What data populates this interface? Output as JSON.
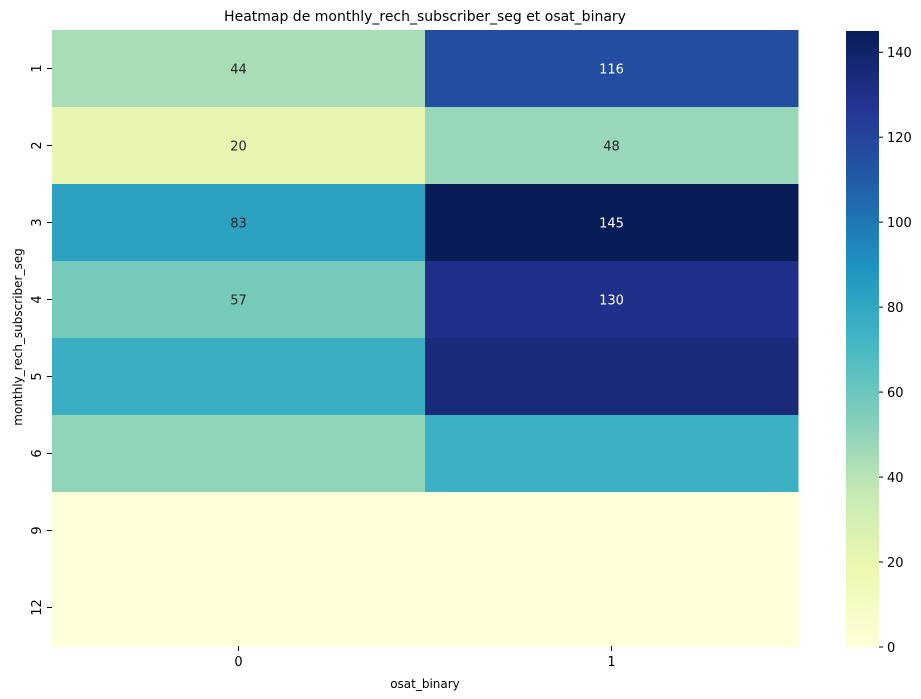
{
  "chart_data": {
    "type": "heatmap",
    "title": "Heatmap de monthly_rech_subscriber_seg et osat_binary",
    "xlabel": "osat_binary",
    "ylabel": "monthly_rech_subscriber_seg",
    "x_categories": [
      "0",
      "1"
    ],
    "y_categories": [
      "1",
      "2",
      "3",
      "4",
      "5",
      "6",
      "9",
      "12"
    ],
    "values": [
      [
        44,
        116
      ],
      [
        20,
        48
      ],
      [
        83,
        145
      ],
      [
        57,
        130
      ],
      [
        76,
        135
      ],
      [
        50,
        75
      ],
      [
        0,
        0
      ],
      [
        0,
        0
      ]
    ],
    "cell_labels": [
      [
        "44",
        "116"
      ],
      [
        "20",
        "48"
      ],
      [
        "83",
        "145"
      ],
      [
        "57",
        "130"
      ],
      [
        "",
        ""
      ],
      [
        "",
        ""
      ],
      [
        "",
        ""
      ],
      [
        "",
        ""
      ]
    ],
    "colormap": "YlGnBu",
    "colormap_stops": [
      "#ffffd9",
      "#edf8b1",
      "#c7e9b4",
      "#7fcdbb",
      "#41b6c4",
      "#1d91c0",
      "#225ea8",
      "#253494",
      "#081d58"
    ],
    "vmin": 0,
    "vmax": 145,
    "colorbar_ticks": [
      "0",
      "20",
      "40",
      "60",
      "80",
      "100",
      "120",
      "140"
    ],
    "grid": false
  }
}
